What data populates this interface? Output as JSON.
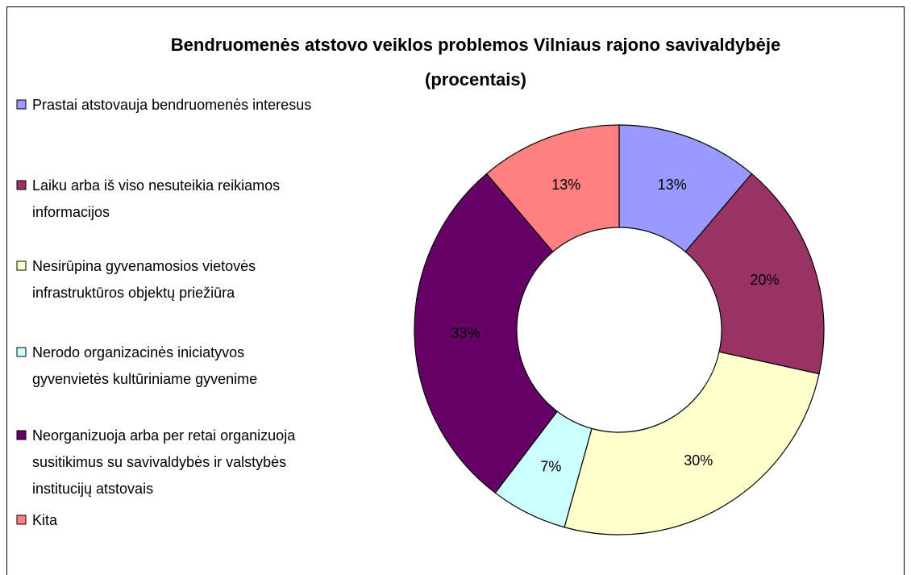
{
  "chart_data": {
    "type": "donut",
    "title": "Bendruomenės atstovo veiklos problemos Vilniaus rajono savivaldybėje (procentais)",
    "categories": [
      "Prastai atstovauja bendruomenės interesus",
      "Laiku arba iš viso nesuteikia reikiamos informacijos",
      "Nesirūpina gyvenamosios vietovės infrastruktūros objektų priežiūra",
      "Nerodo organizacinės iniciatyvos gyvenvietės kultūriniame gyvenime",
      "Neorganizuoja arba per retai organizuoja susitikimus su savivaldybės ir valstybės institucijų atstovais",
      "Kita"
    ],
    "values": [
      13,
      20,
      30,
      7,
      33,
      13
    ],
    "value_labels": [
      "13%",
      "20%",
      "30%",
      "7%",
      "33%",
      "13%"
    ],
    "colors": [
      "#9999ff",
      "#993366",
      "#ffffcc",
      "#ccffff",
      "#660066",
      "#ff8080"
    ],
    "legend": "left"
  }
}
